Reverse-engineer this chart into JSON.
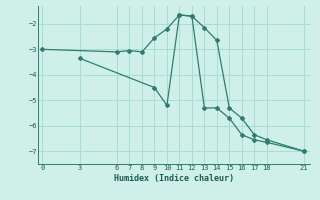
{
  "xlabel": "Humidex (Indice chaleur)",
  "bg_color": "#cff0e8",
  "line_color": "#2e7d6e",
  "grid_color": "#a8ddd4",
  "line1_x": [
    0,
    6,
    7,
    8,
    9,
    10,
    11,
    12,
    13,
    14,
    15,
    16,
    17,
    18,
    21
  ],
  "line1_y": [
    -3.0,
    -3.1,
    -3.05,
    -3.1,
    -2.55,
    -2.2,
    -1.65,
    -1.7,
    -2.15,
    -2.65,
    -5.3,
    -5.7,
    -6.35,
    -6.55,
    -7.0
  ],
  "line2_x": [
    3,
    9,
    10,
    11,
    12,
    13,
    14,
    15,
    16,
    17,
    18,
    21
  ],
  "line2_y": [
    -3.35,
    -4.5,
    -5.2,
    -1.65,
    -1.7,
    -5.3,
    -5.3,
    -5.7,
    -6.35,
    -6.55,
    -6.65,
    -7.0
  ],
  "xticks": [
    0,
    3,
    6,
    7,
    8,
    9,
    10,
    11,
    12,
    13,
    14,
    15,
    16,
    17,
    18,
    21
  ],
  "yticks": [
    -7,
    -6,
    -5,
    -4,
    -3,
    -2
  ],
  "xlim": [
    -0.3,
    21.5
  ],
  "ylim": [
    -7.5,
    -1.3
  ]
}
